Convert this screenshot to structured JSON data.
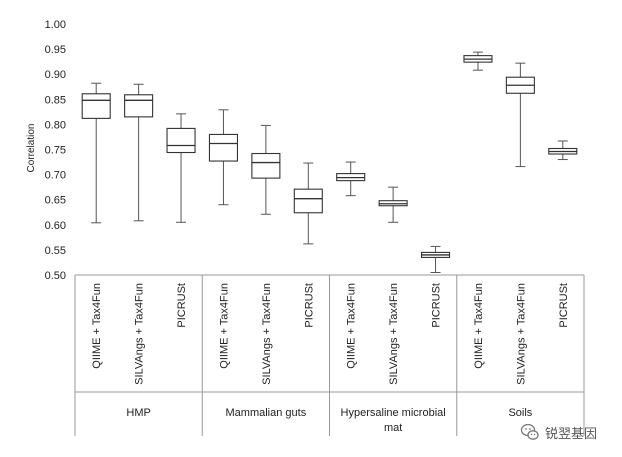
{
  "chart_data": {
    "type": "boxplot",
    "title": "",
    "xlabel": "",
    "ylabel": "Correlation",
    "ylim": [
      0.5,
      1.0
    ],
    "yticks": [
      "0.50",
      "0.55",
      "0.60",
      "0.65",
      "0.70",
      "0.75",
      "0.80",
      "0.85",
      "0.90",
      "0.95",
      "1.00"
    ],
    "grid": false,
    "groups": [
      {
        "name": "HMP",
        "boxes": [
          {
            "method": "QIIME + Tax4Fun",
            "min": 0.604,
            "q1": 0.812,
            "median": 0.848,
            "q3": 0.861,
            "max": 0.882
          },
          {
            "method": "SILVAngs + Tax4Fun",
            "min": 0.608,
            "q1": 0.815,
            "median": 0.848,
            "q3": 0.859,
            "max": 0.88
          },
          {
            "method": "PICRUSt",
            "min": 0.605,
            "q1": 0.744,
            "median": 0.758,
            "q3": 0.792,
            "max": 0.821
          }
        ]
      },
      {
        "name": "Mammalian guts",
        "boxes": [
          {
            "method": "QIIME + Tax4Fun",
            "min": 0.64,
            "q1": 0.727,
            "median": 0.762,
            "q3": 0.78,
            "max": 0.829
          },
          {
            "method": "SILVAngs + Tax4Fun",
            "min": 0.621,
            "q1": 0.693,
            "median": 0.724,
            "q3": 0.742,
            "max": 0.798
          },
          {
            "method": "PICRUSt",
            "min": 0.562,
            "q1": 0.624,
            "median": 0.652,
            "q3": 0.671,
            "max": 0.723
          }
        ]
      },
      {
        "name": "Hypersaline microbial mat",
        "boxes": [
          {
            "method": "QIIME + Tax4Fun",
            "min": 0.658,
            "q1": 0.688,
            "median": 0.694,
            "q3": 0.702,
            "max": 0.725
          },
          {
            "method": "SILVAngs + Tax4Fun",
            "min": 0.605,
            "q1": 0.638,
            "median": 0.642,
            "q3": 0.648,
            "max": 0.675
          },
          {
            "method": "PICRUSt",
            "min": 0.505,
            "q1": 0.535,
            "median": 0.54,
            "q3": 0.545,
            "max": 0.557
          }
        ]
      },
      {
        "name": "Soils",
        "boxes": [
          {
            "method": "QIIME + Tax4Fun",
            "min": 0.908,
            "q1": 0.924,
            "median": 0.93,
            "q3": 0.937,
            "max": 0.944
          },
          {
            "method": "SILVAngs + Tax4Fun",
            "min": 0.716,
            "q1": 0.862,
            "median": 0.878,
            "q3": 0.894,
            "max": 0.922
          },
          {
            "method": "PICRUSt",
            "min": 0.73,
            "q1": 0.741,
            "median": 0.746,
            "q3": 0.752,
            "max": 0.767
          }
        ]
      }
    ],
    "colors": {
      "box_stroke": "#333333",
      "whisker": "#555555",
      "axis": "#999999",
      "text": "#222222"
    }
  },
  "watermark": {
    "icon": "wechat-icon",
    "text": "锐翌基因"
  }
}
